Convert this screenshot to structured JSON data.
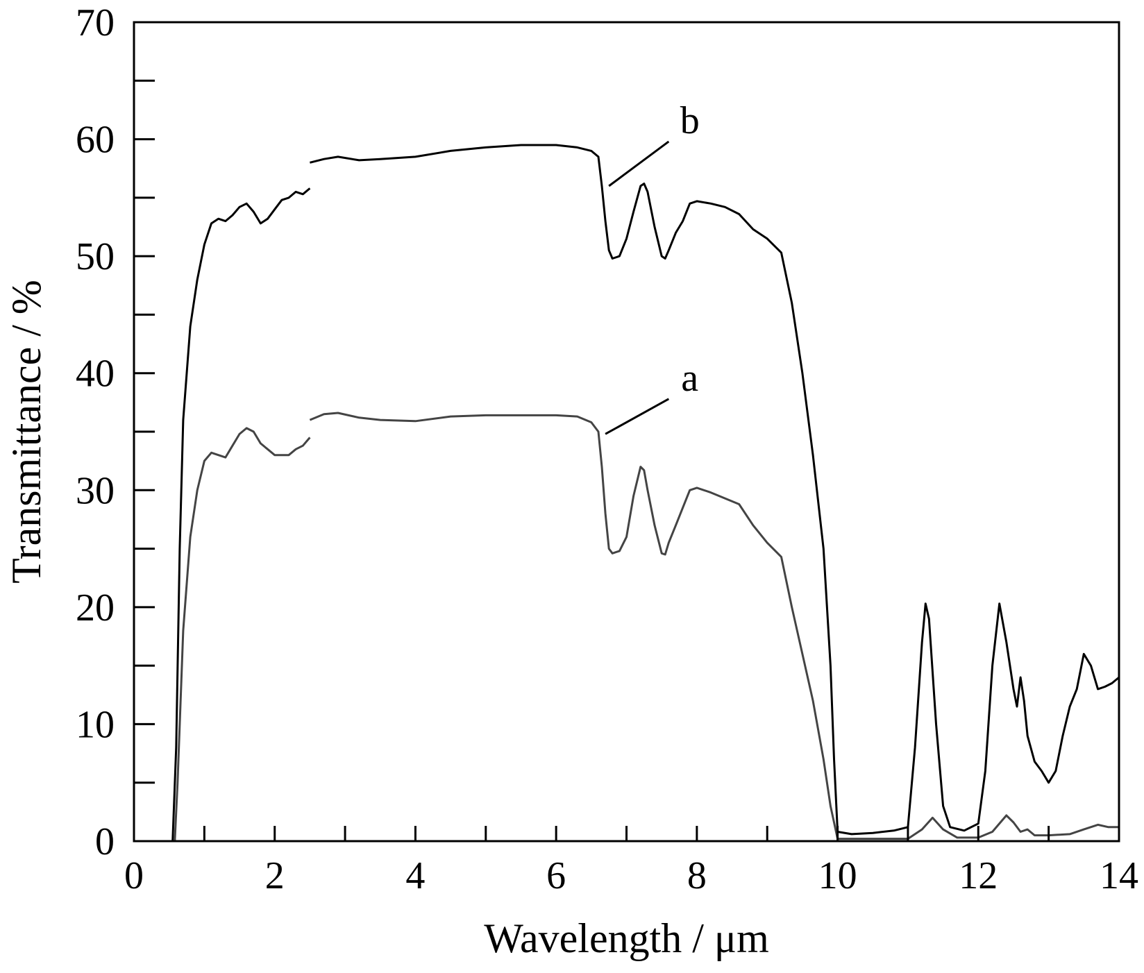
{
  "chart_data": {
    "type": "line",
    "title": "",
    "xlabel": "Wavelength / μm",
    "ylabel": "Transmittance / %",
    "xlim": [
      0,
      14
    ],
    "ylim": [
      0,
      70
    ],
    "x_major_ticks": [
      0,
      2,
      4,
      6,
      8,
      10,
      12,
      14
    ],
    "x_minor_ticks": [
      1,
      3,
      5,
      7,
      9,
      11,
      13
    ],
    "y_major_ticks": [
      0,
      10,
      20,
      30,
      40,
      50,
      60,
      70
    ],
    "y_minor_ticks": [
      5,
      15,
      25,
      35,
      45,
      55,
      65
    ],
    "x_tick_labels": [
      "0",
      "2",
      "4",
      "6",
      "8",
      "10",
      "12",
      "14"
    ],
    "y_tick_labels": [
      "0",
      "10",
      "20",
      "30",
      "40",
      "50",
      "60",
      "70"
    ],
    "grid": false,
    "legend": "none",
    "series": [
      {
        "name": "b",
        "color": "#000000",
        "segments": [
          [
            [
              0.2,
              0.0
            ],
            [
              0.55,
              0.0
            ],
            [
              0.6,
              8.0
            ],
            [
              0.65,
              25.0
            ],
            [
              0.7,
              36.0
            ],
            [
              0.8,
              44.0
            ],
            [
              0.9,
              48.0
            ],
            [
              1.0,
              51.0
            ],
            [
              1.1,
              52.8
            ],
            [
              1.2,
              53.2
            ],
            [
              1.3,
              53.0
            ],
            [
              1.4,
              53.5
            ],
            [
              1.5,
              54.2
            ],
            [
              1.6,
              54.5
            ],
            [
              1.7,
              53.8
            ],
            [
              1.8,
              52.8
            ],
            [
              1.9,
              53.2
            ],
            [
              2.0,
              54.0
            ],
            [
              2.1,
              54.8
            ],
            [
              2.2,
              55.0
            ],
            [
              2.3,
              55.5
            ],
            [
              2.4,
              55.3
            ],
            [
              2.5,
              55.8
            ]
          ],
          [
            [
              2.5,
              58.0
            ],
            [
              2.7,
              58.3
            ],
            [
              2.9,
              58.5
            ],
            [
              3.2,
              58.2
            ],
            [
              3.5,
              58.3
            ],
            [
              4.0,
              58.5
            ],
            [
              4.5,
              59.0
            ],
            [
              5.0,
              59.3
            ],
            [
              5.5,
              59.5
            ],
            [
              6.0,
              59.5
            ],
            [
              6.3,
              59.3
            ],
            [
              6.5,
              59.0
            ],
            [
              6.6,
              58.5
            ],
            [
              6.65,
              56.0
            ],
            [
              6.7,
              53.0
            ],
            [
              6.75,
              50.5
            ],
            [
              6.8,
              49.8
            ],
            [
              6.9,
              50.0
            ],
            [
              7.0,
              51.5
            ],
            [
              7.1,
              53.8
            ],
            [
              7.2,
              56.0
            ],
            [
              7.25,
              56.2
            ],
            [
              7.3,
              55.5
            ],
            [
              7.4,
              52.5
            ],
            [
              7.5,
              50.0
            ],
            [
              7.55,
              49.8
            ],
            [
              7.6,
              50.5
            ],
            [
              7.7,
              52.0
            ],
            [
              7.8,
              53.0
            ],
            [
              7.9,
              54.5
            ],
            [
              8.0,
              54.7
            ],
            [
              8.2,
              54.5
            ],
            [
              8.4,
              54.2
            ],
            [
              8.6,
              53.6
            ],
            [
              8.8,
              52.3
            ],
            [
              9.0,
              51.5
            ],
            [
              9.2,
              50.3
            ],
            [
              9.35,
              46.0
            ],
            [
              9.5,
              40.0
            ],
            [
              9.65,
              33.0
            ],
            [
              9.8,
              25.0
            ],
            [
              9.9,
              15.0
            ],
            [
              9.95,
              7.0
            ],
            [
              10.0,
              0.8
            ],
            [
              10.2,
              0.6
            ],
            [
              10.5,
              0.7
            ],
            [
              10.8,
              0.9
            ],
            [
              11.0,
              1.2
            ],
            [
              11.1,
              8.0
            ],
            [
              11.2,
              17.0
            ],
            [
              11.25,
              20.3
            ],
            [
              11.3,
              19.0
            ],
            [
              11.4,
              10.0
            ],
            [
              11.5,
              3.0
            ],
            [
              11.6,
              1.2
            ],
            [
              11.8,
              0.9
            ],
            [
              12.0,
              1.5
            ],
            [
              12.1,
              6.0
            ],
            [
              12.2,
              15.0
            ],
            [
              12.3,
              20.3
            ],
            [
              12.4,
              17.0
            ],
            [
              12.5,
              13.0
            ],
            [
              12.55,
              11.5
            ],
            [
              12.6,
              14.0
            ],
            [
              12.65,
              12.0
            ],
            [
              12.7,
              9.0
            ],
            [
              12.8,
              6.8
            ],
            [
              12.9,
              6.0
            ],
            [
              13.0,
              5.0
            ],
            [
              13.1,
              6.0
            ],
            [
              13.2,
              9.0
            ],
            [
              13.3,
              11.5
            ],
            [
              13.4,
              13.0
            ],
            [
              13.5,
              16.0
            ],
            [
              13.6,
              15.0
            ],
            [
              13.7,
              13.0
            ],
            [
              13.8,
              13.2
            ],
            [
              13.9,
              13.5
            ],
            [
              14.0,
              14.0
            ]
          ]
        ]
      },
      {
        "name": "a",
        "color": "#444444",
        "segments": [
          [
            [
              0.2,
              0.0
            ],
            [
              0.58,
              0.0
            ],
            [
              0.62,
              5.0
            ],
            [
              0.7,
              18.0
            ],
            [
              0.8,
              26.0
            ],
            [
              0.9,
              30.0
            ],
            [
              1.0,
              32.5
            ],
            [
              1.1,
              33.2
            ],
            [
              1.2,
              33.0
            ],
            [
              1.3,
              32.8
            ],
            [
              1.4,
              33.8
            ],
            [
              1.5,
              34.8
            ],
            [
              1.6,
              35.3
            ],
            [
              1.7,
              35.0
            ],
            [
              1.8,
              34.0
            ],
            [
              1.9,
              33.5
            ],
            [
              2.0,
              33.0
            ],
            [
              2.1,
              33.0
            ],
            [
              2.2,
              33.0
            ],
            [
              2.3,
              33.5
            ],
            [
              2.4,
              33.8
            ],
            [
              2.5,
              34.5
            ]
          ],
          [
            [
              2.5,
              36.0
            ],
            [
              2.7,
              36.5
            ],
            [
              2.9,
              36.6
            ],
            [
              3.2,
              36.2
            ],
            [
              3.5,
              36.0
            ],
            [
              4.0,
              35.9
            ],
            [
              4.5,
              36.3
            ],
            [
              5.0,
              36.4
            ],
            [
              5.5,
              36.4
            ],
            [
              6.0,
              36.4
            ],
            [
              6.3,
              36.3
            ],
            [
              6.5,
              35.8
            ],
            [
              6.6,
              35.0
            ],
            [
              6.65,
              32.0
            ],
            [
              6.7,
              28.0
            ],
            [
              6.75,
              25.0
            ],
            [
              6.8,
              24.6
            ],
            [
              6.9,
              24.8
            ],
            [
              7.0,
              26.0
            ],
            [
              7.1,
              29.5
            ],
            [
              7.2,
              32.0
            ],
            [
              7.25,
              31.7
            ],
            [
              7.3,
              30.0
            ],
            [
              7.4,
              27.0
            ],
            [
              7.5,
              24.6
            ],
            [
              7.55,
              24.5
            ],
            [
              7.6,
              25.5
            ],
            [
              7.7,
              27.0
            ],
            [
              7.8,
              28.5
            ],
            [
              7.9,
              30.0
            ],
            [
              8.0,
              30.2
            ],
            [
              8.2,
              29.8
            ],
            [
              8.4,
              29.3
            ],
            [
              8.6,
              28.8
            ],
            [
              8.8,
              27.0
            ],
            [
              9.0,
              25.5
            ],
            [
              9.2,
              24.3
            ],
            [
              9.35,
              20.0
            ],
            [
              9.5,
              16.0
            ],
            [
              9.65,
              12.0
            ],
            [
              9.8,
              7.0
            ],
            [
              9.9,
              3.0
            ],
            [
              10.0,
              0.2
            ],
            [
              10.5,
              0.2
            ],
            [
              11.0,
              0.2
            ],
            [
              11.2,
              1.0
            ],
            [
              11.35,
              2.0
            ],
            [
              11.5,
              1.0
            ],
            [
              11.7,
              0.3
            ],
            [
              12.0,
              0.3
            ],
            [
              12.2,
              0.8
            ],
            [
              12.4,
              2.2
            ],
            [
              12.5,
              1.6
            ],
            [
              12.6,
              0.8
            ],
            [
              12.7,
              1.0
            ],
            [
              12.8,
              0.5
            ],
            [
              13.0,
              0.5
            ],
            [
              13.3,
              0.6
            ],
            [
              13.5,
              1.0
            ],
            [
              13.7,
              1.4
            ],
            [
              13.85,
              1.2
            ],
            [
              14.0,
              1.2
            ]
          ]
        ]
      }
    ],
    "annotations": [
      {
        "text": "b",
        "label_x": 7.9,
        "label_y": 60.5,
        "line_from": [
          7.6,
          59.8
        ],
        "line_to": [
          6.75,
          56.0
        ]
      },
      {
        "text": "a",
        "label_x": 7.9,
        "label_y": 38.5,
        "line_from": [
          7.6,
          37.8
        ],
        "line_to": [
          6.7,
          34.8
        ]
      }
    ]
  }
}
